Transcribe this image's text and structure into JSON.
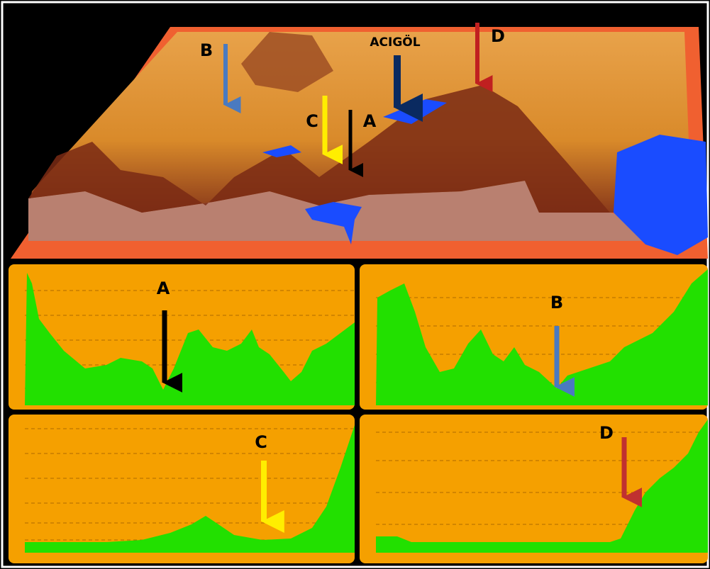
{
  "terrain": {
    "labels": [
      "B",
      "ACIGÖL",
      "D",
      "C",
      "A"
    ]
  },
  "profiles": [
    {
      "label": "A"
    },
    {
      "label": "B"
    },
    {
      "label": "C"
    },
    {
      "label": "D"
    }
  ]
}
